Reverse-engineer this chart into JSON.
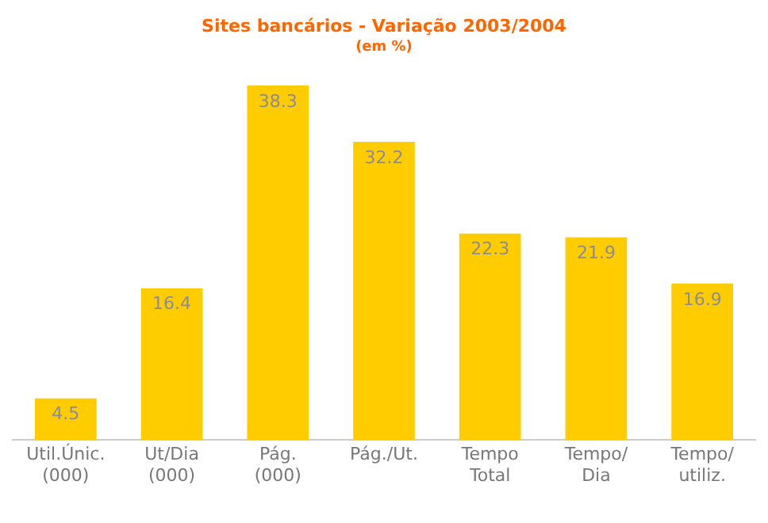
{
  "chart_data": {
    "type": "bar",
    "title": "Sites bancários - Variação 2003/2004",
    "subtitle": "(em %)",
    "categories": [
      "Util.Únic. (000)",
      "Ut/Dia (000)",
      "Pág. (000)",
      "Pág./Ut.",
      "Tempo Total",
      "Tempo/ Dia",
      "Tempo/ utiliz."
    ],
    "values": [
      4.5,
      16.4,
      38.3,
      32.2,
      22.3,
      21.9,
      16.9
    ],
    "color": "#ffcc00",
    "data_labels": true,
    "grid": false,
    "legend": false
  }
}
